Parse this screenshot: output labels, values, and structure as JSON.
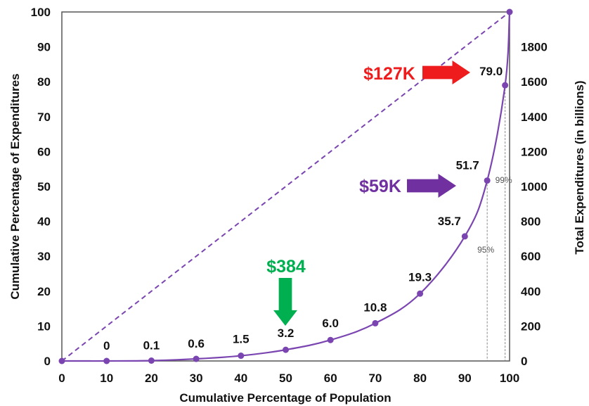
{
  "chart_data": {
    "type": "line",
    "xlabel": "Cumulative Percentage of Population",
    "ylabel": "Cumulative Percentage of Expenditures",
    "y2label": "Total Expenditures (in billions)",
    "xlim": [
      0,
      100
    ],
    "ylim": [
      0,
      100
    ],
    "y2lim": [
      0,
      2000
    ],
    "xticks": [
      "0",
      "10",
      "20",
      "30",
      "40",
      "50",
      "60",
      "70",
      "80",
      "90",
      "100"
    ],
    "yticks": [
      "0",
      "10",
      "20",
      "30",
      "40",
      "50",
      "60",
      "70",
      "80",
      "90",
      "100"
    ],
    "y2ticks": [
      "0",
      "200",
      "400",
      "600",
      "800",
      "1000",
      "1200",
      "1400",
      "1600",
      "1800"
    ],
    "grid": false,
    "colors": {
      "curve": "#7a45b0",
      "red": "#ee1c1c",
      "purple": "#7030a0",
      "green": "#00b050"
    },
    "series": [
      {
        "points": [
          {
            "x": 0,
            "y": 0,
            "label": ""
          },
          {
            "x": 10,
            "y": 0,
            "label": "0"
          },
          {
            "x": 20,
            "y": 0.1,
            "label": "0.1"
          },
          {
            "x": 30,
            "y": 0.6,
            "label": "0.6"
          },
          {
            "x": 40,
            "y": 1.5,
            "label": "1.5"
          },
          {
            "x": 50,
            "y": 3.2,
            "label": "3.2"
          },
          {
            "x": 60,
            "y": 6.0,
            "label": "6.0"
          },
          {
            "x": 70,
            "y": 10.8,
            "label": "10.8"
          },
          {
            "x": 80,
            "y": 19.3,
            "label": "19.3"
          },
          {
            "x": 90,
            "y": 35.7,
            "label": "35.7"
          },
          {
            "x": 95,
            "y": 51.7,
            "label": "51.7"
          },
          {
            "x": 99,
            "y": 79.0,
            "label": "79.0"
          },
          {
            "x": 100,
            "y": 100,
            "label": ""
          }
        ]
      },
      {
        "style": "dashed",
        "points": [
          {
            "x": 0,
            "y": 0
          },
          {
            "x": 100,
            "y": 100
          }
        ]
      }
    ],
    "reference_lines": [
      {
        "x": 95,
        "label": "95%"
      },
      {
        "x": 99,
        "label": "99%"
      }
    ],
    "annotations": [
      {
        "text": "$127K",
        "color": "#ee1c1c",
        "arrow": "right",
        "target": "79.0"
      },
      {
        "text": "$59K",
        "color": "#7030a0",
        "arrow": "right",
        "target": "51.7"
      },
      {
        "text": "$384",
        "color": "#00b050",
        "arrow": "down",
        "target": "3.2"
      }
    ]
  }
}
